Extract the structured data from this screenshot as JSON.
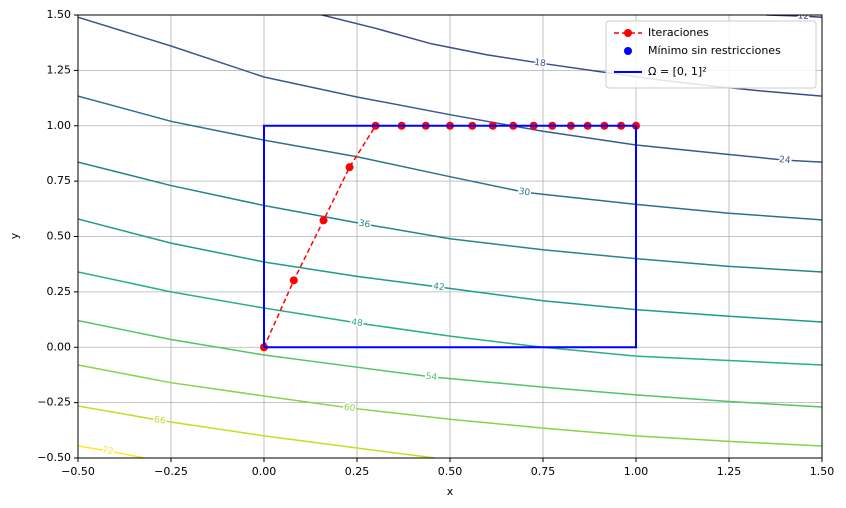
{
  "chart_data": {
    "type": "contour",
    "xlabel": "x",
    "ylabel": "y",
    "xlim": [
      -0.5,
      1.5
    ],
    "ylim": [
      -0.5,
      1.5
    ],
    "xticks": [
      {
        "value": -0.5,
        "label": "−0.50"
      },
      {
        "value": -0.25,
        "label": "−0.25"
      },
      {
        "value": 0,
        "label": "0.00"
      },
      {
        "value": 0.25,
        "label": "0.25"
      },
      {
        "value": 0.5,
        "label": "0.50"
      },
      {
        "value": 0.75,
        "label": "0.75"
      },
      {
        "value": 1,
        "label": "1.00"
      },
      {
        "value": 1.25,
        "label": "1.25"
      },
      {
        "value": 1.5,
        "label": "1.50"
      }
    ],
    "yticks": [
      {
        "value": -0.5,
        "label": "−0.50"
      },
      {
        "value": -0.25,
        "label": "−0.25"
      },
      {
        "value": 0,
        "label": "0.00"
      },
      {
        "value": 0.25,
        "label": "0.25"
      },
      {
        "value": 0.5,
        "label": "0.50"
      },
      {
        "value": 0.75,
        "label": "0.75"
      },
      {
        "value": 1,
        "label": "1.00"
      },
      {
        "value": 1.25,
        "label": "1.25"
      },
      {
        "value": 1.5,
        "label": "1.50"
      }
    ],
    "grid": true,
    "legend": "upper right",
    "contours": [
      {
        "level": 12,
        "color": "#46327e",
        "x": [
          1.35,
          1.45,
          1.5
        ],
        "y": [
          1.5,
          1.495,
          1.49
        ]
      },
      {
        "level": 18,
        "color": "#3e4c8a",
        "x": [
          0.156,
          0.3,
          0.45,
          0.6,
          0.742,
          0.9,
          1.05,
          1.2,
          1.35,
          1.5
        ],
        "y": [
          1.5,
          1.44,
          1.37,
          1.32,
          1.283,
          1.245,
          1.21,
          1.18,
          1.155,
          1.134
        ]
      },
      {
        "level": 24,
        "color": "#365c8d",
        "x": [
          -0.5,
          -0.25,
          0,
          0.25,
          0.5,
          0.75,
          1.0,
          1.25,
          1.4,
          1.5
        ],
        "y": [
          1.49,
          1.36,
          1.22,
          1.13,
          1.05,
          0.975,
          0.913,
          0.87,
          0.845,
          0.836
        ]
      },
      {
        "level": 30,
        "color": "#2d708e",
        "x": [
          -0.5,
          -0.25,
          0,
          0.25,
          0.5,
          0.7,
          1.0,
          1.25,
          1.5
        ],
        "y": [
          1.134,
          1.02,
          0.935,
          0.86,
          0.77,
          0.7,
          0.645,
          0.605,
          0.575
        ]
      },
      {
        "level": 36,
        "color": "#25848e",
        "x": [
          -0.5,
          -0.25,
          0,
          0.27,
          0.5,
          0.75,
          1.0,
          1.25,
          1.5
        ],
        "y": [
          0.836,
          0.73,
          0.64,
          0.556,
          0.49,
          0.44,
          0.4,
          0.365,
          0.34
        ]
      },
      {
        "level": 42,
        "color": "#1e9b8a",
        "x": [
          -0.5,
          -0.25,
          0,
          0.25,
          0.47,
          0.75,
          1.0,
          1.25,
          1.5
        ],
        "y": [
          0.579,
          0.47,
          0.385,
          0.32,
          0.272,
          0.21,
          0.17,
          0.14,
          0.114
        ]
      },
      {
        "level": 48,
        "color": "#2ab07f",
        "x": [
          -0.5,
          -0.25,
          0,
          0.25,
          0.5,
          0.75,
          1.0,
          1.25,
          1.5
        ],
        "y": [
          0.34,
          0.25,
          0.177,
          0.11,
          0.05,
          0.0,
          -0.04,
          -0.06,
          -0.08
        ]
      },
      {
        "level": 54,
        "color": "#52c569",
        "x": [
          -0.5,
          -0.25,
          0,
          0.25,
          0.45,
          0.75,
          1.0,
          1.25,
          1.5
        ],
        "y": [
          0.12,
          0.035,
          -0.035,
          -0.09,
          -0.134,
          -0.18,
          -0.215,
          -0.245,
          -0.27
        ]
      },
      {
        "level": 60,
        "color": "#86d549",
        "x": [
          -0.5,
          -0.25,
          0,
          0.23,
          0.5,
          0.75,
          1.0,
          1.25,
          1.5
        ],
        "y": [
          -0.08,
          -0.16,
          -0.22,
          -0.274,
          -0.325,
          -0.365,
          -0.4,
          -0.425,
          -0.446
        ]
      },
      {
        "level": 66,
        "color": "#c2df23",
        "x": [
          -0.5,
          -0.28,
          0,
          0.25,
          0.46
        ],
        "y": [
          -0.265,
          -0.33,
          -0.4,
          -0.455,
          -0.5
        ]
      },
      {
        "level": 72,
        "color": "#fde725",
        "x": [
          -0.5,
          -0.42,
          -0.32
        ],
        "y": [
          -0.446,
          -0.468,
          -0.5
        ]
      }
    ],
    "series": [
      {
        "name": "Iteraciones",
        "color": "#ff0000",
        "style": "dashed-markers",
        "x": [
          0,
          0.08,
          0.16,
          0.23,
          0.3,
          0.37,
          0.435,
          0.5,
          0.56,
          0.615,
          0.67,
          0.725,
          0.775,
          0.825,
          0.87,
          0.915,
          0.96,
          1.0
        ],
        "y": [
          0,
          0.302,
          0.573,
          0.813,
          1,
          1,
          1,
          1,
          1,
          1,
          1,
          1,
          1,
          1,
          1,
          1,
          1,
          1
        ]
      },
      {
        "name": "Mínimo sin restricciones",
        "color": "#0000ff",
        "style": "markers"
      },
      {
        "name": "Ω = [0, 1]²",
        "color": "#0000ff",
        "style": "line",
        "x": [
          0,
          1,
          1,
          0,
          0
        ],
        "y": [
          0,
          0,
          1,
          1,
          0
        ]
      }
    ]
  }
}
